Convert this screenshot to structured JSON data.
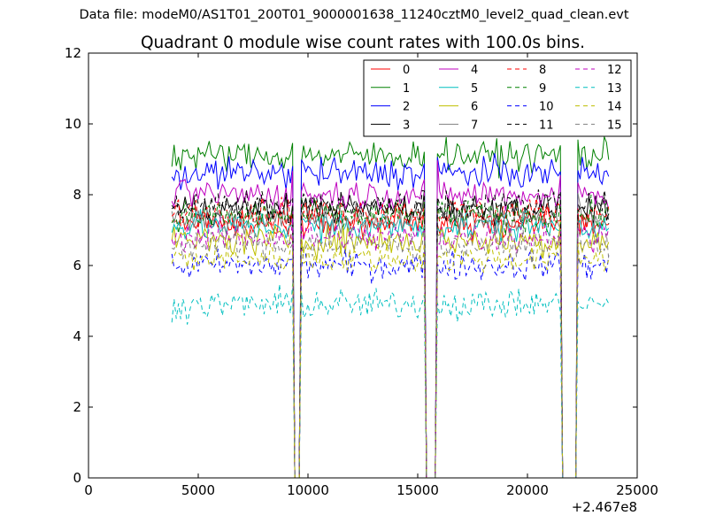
{
  "figure": {
    "suptitle": "Data file: modeM0/AS1T01_200T01_9000001638_11240cztM0_level2_quad_clean.evt"
  },
  "chart_data": {
    "type": "line",
    "title": "Quadrant 0 module wise count rates with 100.0s bins.",
    "xlabel": "",
    "ylabel": "",
    "xlim": [
      0,
      25000
    ],
    "ylim": [
      0,
      12
    ],
    "x_offset_label": "+2.467e8",
    "x_ticks": [
      0,
      5000,
      10000,
      15000,
      20000,
      25000
    ],
    "x_tick_labels": [
      "0",
      "5000",
      "10000",
      "15000",
      "20000",
      "25000"
    ],
    "y_ticks": [
      0,
      2,
      4,
      6,
      8,
      10,
      12
    ],
    "y_tick_labels": [
      "0",
      "2",
      "4",
      "6",
      "8",
      "10",
      "12"
    ],
    "grid": false,
    "legend_position": "top-right",
    "legend_columns": 4,
    "x_range": [
      3800,
      23700
    ],
    "bin_width": 100,
    "gaps": [
      {
        "start": 9400,
        "end": 9600
      },
      {
        "start": 15400,
        "end": 15800
      },
      {
        "start": 21600,
        "end": 22200
      }
    ],
    "series": [
      {
        "name": "0",
        "color": "#ff0000",
        "dash": "solid",
        "mean": 7.2
      },
      {
        "name": "1",
        "color": "#008000",
        "dash": "solid",
        "mean": 9.1
      },
      {
        "name": "2",
        "color": "#0000ff",
        "dash": "solid",
        "mean": 8.6
      },
      {
        "name": "3",
        "color": "#000000",
        "dash": "solid",
        "mean": 7.6
      },
      {
        "name": "4",
        "color": "#bf00bf",
        "dash": "solid",
        "mean": 8.0
      },
      {
        "name": "5",
        "color": "#00bfbf",
        "dash": "solid",
        "mean": 7.1
      },
      {
        "name": "6",
        "color": "#bfbf00",
        "dash": "solid",
        "mean": 6.7
      },
      {
        "name": "7",
        "color": "#808080",
        "dash": "solid",
        "mean": 7.3
      },
      {
        "name": "8",
        "color": "#ff0000",
        "dash": "dashed",
        "mean": 7.5
      },
      {
        "name": "9",
        "color": "#008000",
        "dash": "dashed",
        "mean": 7.4
      },
      {
        "name": "10",
        "color": "#0000ff",
        "dash": "dashed",
        "mean": 6.0
      },
      {
        "name": "11",
        "color": "#000000",
        "dash": "dashed",
        "mean": 7.7
      },
      {
        "name": "12",
        "color": "#bf00bf",
        "dash": "dashed",
        "mean": 6.8
      },
      {
        "name": "13",
        "color": "#00bfbf",
        "dash": "dashed",
        "mean": 4.9
      },
      {
        "name": "14",
        "color": "#bfbf00",
        "dash": "dashed",
        "mean": 6.2
      },
      {
        "name": "15",
        "color": "#808080",
        "dash": "dashed",
        "mean": 6.6
      }
    ]
  }
}
